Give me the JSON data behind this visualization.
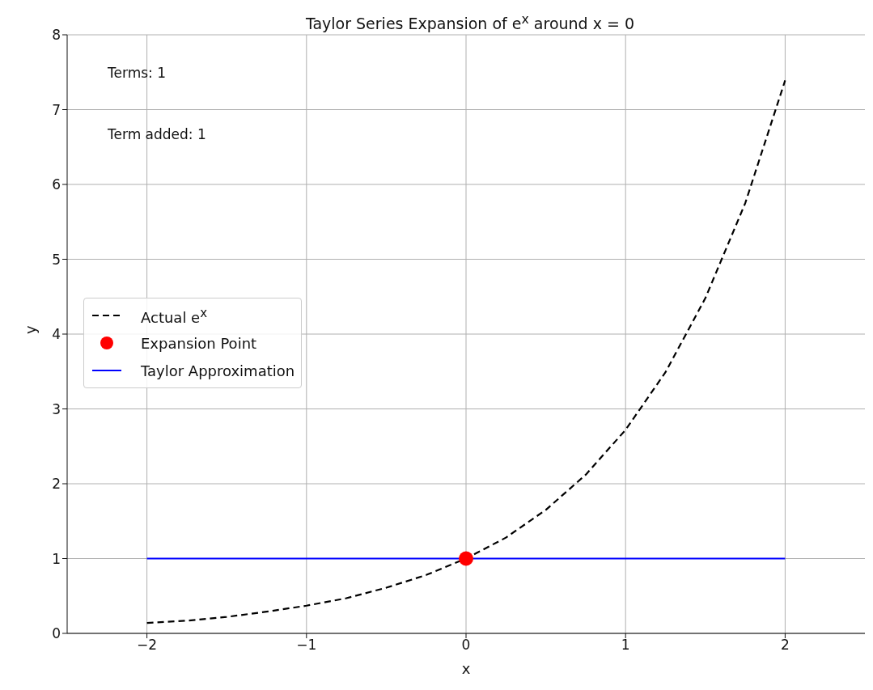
{
  "chart_data": {
    "type": "line",
    "title": "Taylor Series Expansion of e$^{x}$ around x = 0",
    "xlabel": "x",
    "ylabel": "y",
    "xlim": [
      -2.5,
      2.5
    ],
    "ylim": [
      0,
      8
    ],
    "xticks": [
      {
        "value": -2,
        "label": "−2"
      },
      {
        "value": -1,
        "label": "−1"
      },
      0,
      1,
      2
    ],
    "yticks": [
      0,
      1,
      2,
      3,
      4,
      5,
      6,
      7,
      8
    ],
    "grid": true,
    "legend": "left",
    "annotations": [
      "Terms: 1",
      "Term added: 1"
    ],
    "series": [
      {
        "name": "Actual e$^{x}$",
        "color": "#000000",
        "line_style": "dashed",
        "marker": "none",
        "x": [
          -2,
          -1.75,
          -1.5,
          -1.25,
          -1,
          -0.75,
          -0.5,
          -0.25,
          0,
          0.25,
          0.5,
          0.75,
          1,
          1.25,
          1.5,
          1.75,
          2
        ],
        "values": [
          0.14,
          0.17,
          0.22,
          0.29,
          0.37,
          0.47,
          0.61,
          0.78,
          1,
          1.28,
          1.65,
          2.12,
          2.72,
          3.49,
          4.48,
          5.75,
          7.39
        ]
      },
      {
        "name": "Expansion Point",
        "type": "scatter",
        "color": "#ff0000",
        "marker": "circle",
        "x": [
          0
        ],
        "values": [
          1
        ]
      },
      {
        "name": "Taylor Approximation",
        "color": "#0000ff",
        "line_style": "solid",
        "marker": "none",
        "x": [
          -2,
          2
        ],
        "values": [
          1,
          1
        ]
      }
    ]
  }
}
